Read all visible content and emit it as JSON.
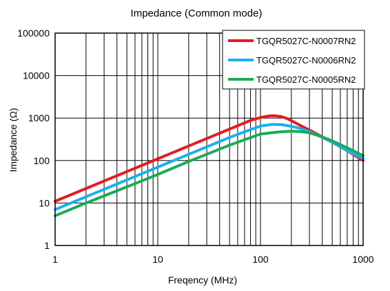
{
  "chart_data": {
    "type": "line",
    "title": "Impedance  (Common mode)",
    "xlabel": "Freqency (MHz)",
    "ylabel": "Impedance (Ω)",
    "x_scale": "log",
    "y_scale": "log",
    "xlim": [
      1,
      1000
    ],
    "ylim": [
      1,
      100000
    ],
    "x_ticks": [
      "1",
      "10",
      "100",
      "1000"
    ],
    "y_ticks": [
      "1",
      "10",
      "100",
      "1000",
      "10000",
      "100000"
    ],
    "grid": true,
    "legend_position": "top-right",
    "series": [
      {
        "name": "TGQR5027C-N0007RN2",
        "color": "#e8191f",
        "x": [
          1,
          2,
          5,
          10,
          20,
          50,
          80,
          100,
          120,
          140,
          160,
          180,
          200,
          250,
          300,
          400,
          500,
          700,
          1000
        ],
        "y": [
          11,
          22,
          55,
          110,
          220,
          550,
          880,
          1030,
          1120,
          1130,
          1080,
          980,
          870,
          650,
          520,
          360,
          270,
          170,
          100
        ]
      },
      {
        "name": "TGQR5027C-N0006RN2",
        "color": "#1ab0ec",
        "x": [
          1,
          2,
          5,
          10,
          20,
          50,
          100,
          130,
          160,
          200,
          250,
          300,
          400,
          500,
          700,
          1000
        ],
        "y": [
          7,
          14,
          35,
          70,
          140,
          350,
          650,
          710,
          700,
          640,
          560,
          480,
          350,
          270,
          170,
          110
        ]
      },
      {
        "name": "TGQR5027C-N0005RN2",
        "color": "#1aab55",
        "x": [
          1,
          2,
          5,
          10,
          20,
          50,
          100,
          150,
          200,
          250,
          300,
          400,
          500,
          700,
          1000
        ],
        "y": [
          5,
          10,
          24,
          47,
          95,
          230,
          420,
          470,
          490,
          480,
          450,
          360,
          290,
          200,
          130
        ]
      }
    ]
  }
}
